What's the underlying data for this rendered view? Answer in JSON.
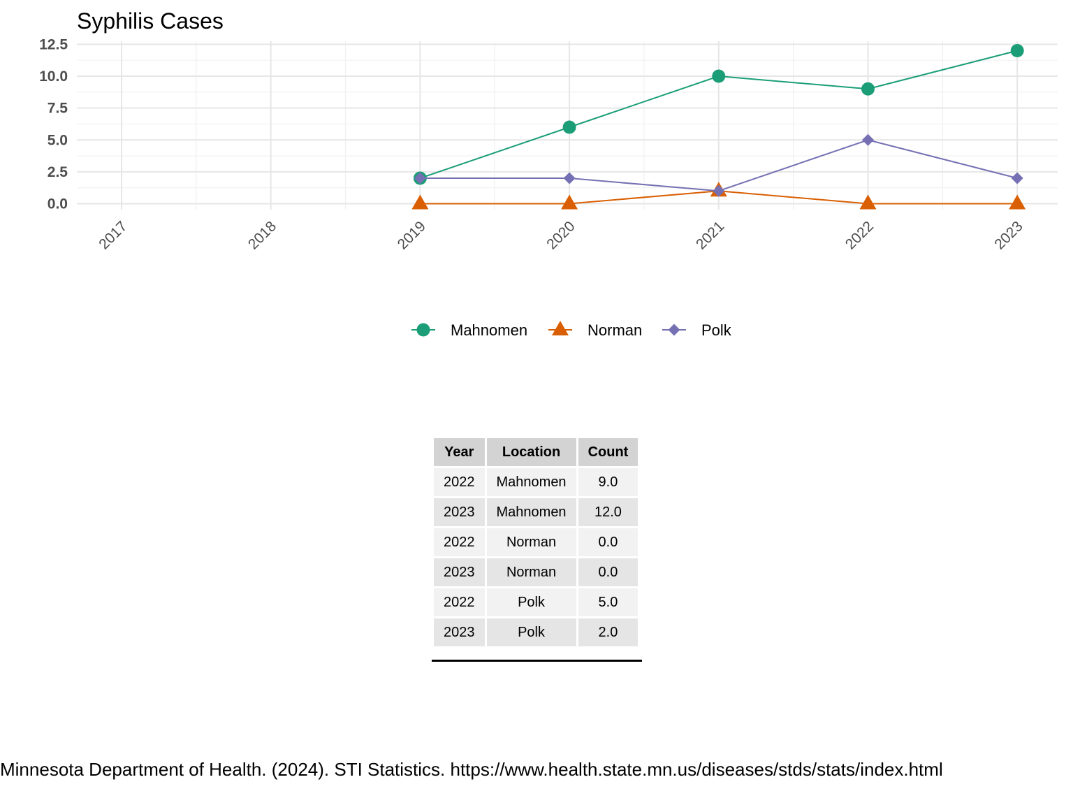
{
  "chart_data": {
    "type": "line",
    "title": "Syphilis Cases",
    "x": [
      "2017",
      "2018",
      "2019",
      "2020",
      "2021",
      "2022",
      "2023"
    ],
    "y_ticks": [
      "0.0",
      "2.5",
      "5.0",
      "7.5",
      "10.0",
      "12.5"
    ],
    "ylim": [
      0,
      12.5
    ],
    "grid": true,
    "legend_position": "bottom",
    "series": [
      {
        "name": "Mahnomen",
        "color": "#1b9e77",
        "marker": "circle",
        "points": [
          [
            2019,
            2
          ],
          [
            2020,
            6
          ],
          [
            2021,
            10
          ],
          [
            2022,
            9
          ],
          [
            2023,
            12
          ]
        ]
      },
      {
        "name": "Norman",
        "color": "#d95f02",
        "marker": "triangle",
        "points": [
          [
            2019,
            0
          ],
          [
            2020,
            0
          ],
          [
            2021,
            1
          ],
          [
            2022,
            0
          ],
          [
            2023,
            0
          ]
        ]
      },
      {
        "name": "Polk",
        "color": "#7570b3",
        "marker": "diamond",
        "points": [
          [
            2019,
            2
          ],
          [
            2020,
            2
          ],
          [
            2021,
            1
          ],
          [
            2022,
            5
          ],
          [
            2023,
            2
          ]
        ]
      }
    ]
  },
  "table": {
    "headers": [
      "Year",
      "Location",
      "Count"
    ],
    "rows": [
      [
        "2022",
        "Mahnomen",
        "9.0"
      ],
      [
        "2023",
        "Mahnomen",
        "12.0"
      ],
      [
        "2022",
        "Norman",
        "0.0"
      ],
      [
        "2023",
        "Norman",
        "0.0"
      ],
      [
        "2022",
        "Polk",
        "5.0"
      ],
      [
        "2023",
        "Polk",
        "2.0"
      ]
    ]
  },
  "source": "Minnesota Department of Health. (2024). STI Statistics. https://www.health.state.mn.us/diseases/stds/stats/index.html"
}
